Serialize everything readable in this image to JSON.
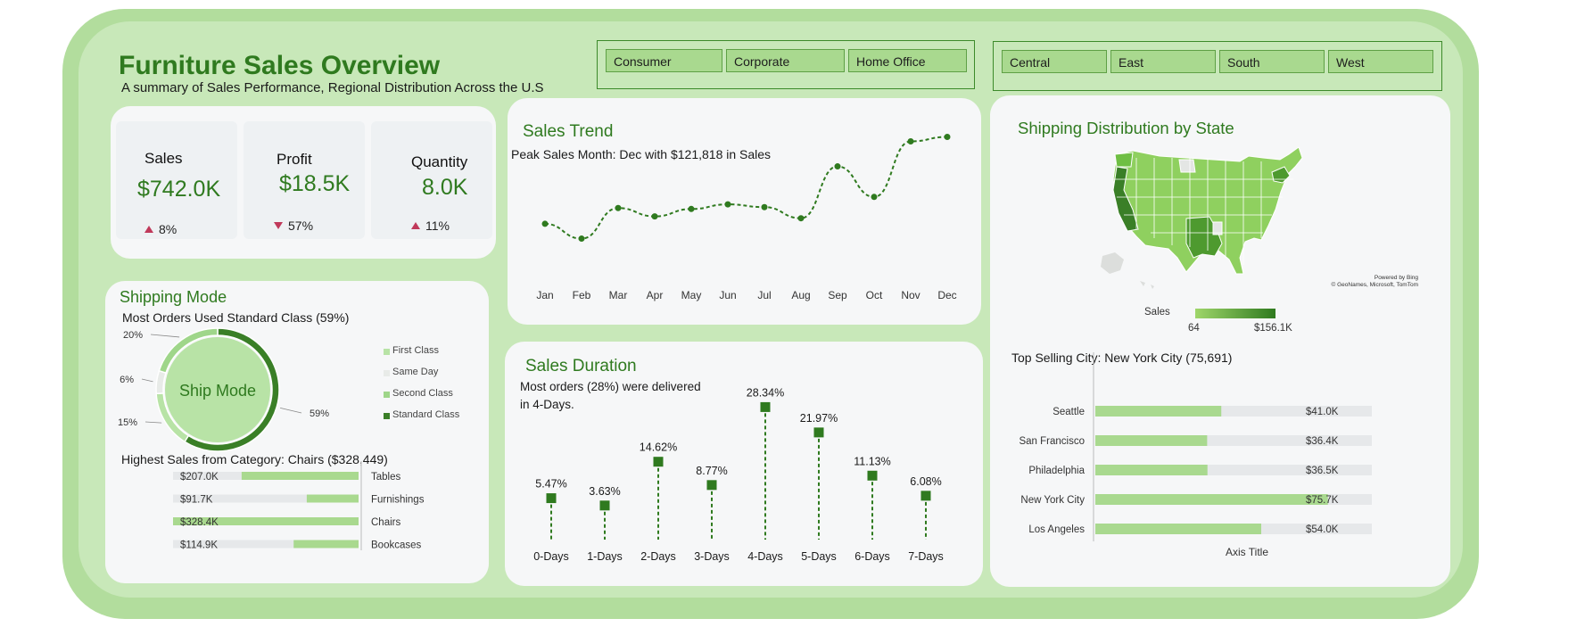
{
  "header": {
    "title": "Furniture Sales Overview",
    "subtitle": "A summary  of Sales Performance, Regional Distribution  Across the U.S"
  },
  "segment_slicer": [
    "Consumer",
    "Corporate",
    "Home Office"
  ],
  "region_slicer": [
    "Central",
    "East",
    "South",
    "West"
  ],
  "kpis": [
    {
      "label": "Sales",
      "value": "$742.0K",
      "change": "8%",
      "direction": "up"
    },
    {
      "label": "Profit",
      "value": "$18.5K",
      "change": "57%",
      "direction": "down"
    },
    {
      "label": "Quantity",
      "value": "8.0K",
      "change": "11%",
      "direction": "up"
    }
  ],
  "sales_trend": {
    "title": "Sales  Trend",
    "note": "Peak Sales Month: Dec with $121,818 in Sales"
  },
  "shipping_mode": {
    "title": "Shipping Mode",
    "note": "Most Orders Used Standard Class (59%)",
    "center_label": "Ship Mode",
    "slices": [
      {
        "name": "First Class",
        "pct": "15%",
        "value": 15,
        "color": "#b8e3a6"
      },
      {
        "name": "Same Day",
        "pct": "6%",
        "value": 6,
        "color": "#e8ebe8"
      },
      {
        "name": "Second Class",
        "pct": "20%",
        "value": 20,
        "color": "#9fd68a"
      },
      {
        "name": "Standard Class",
        "pct": "59%",
        "value": 59,
        "color": "#3a7f27"
      }
    ]
  },
  "category": {
    "note": "Highest Sales from Category: Chairs ($328,449)",
    "rows": [
      {
        "name": "Tables",
        "label": "$207.0K",
        "value": 207.0
      },
      {
        "name": "Furnishings",
        "label": "$91.7K",
        "value": 91.7
      },
      {
        "name": "Chairs",
        "label": "$328.4K",
        "value": 328.4
      },
      {
        "name": "Bookcases",
        "label": "$114.9K",
        "value": 114.9
      }
    ],
    "max": 328.4
  },
  "sales_duration": {
    "title": "Sales  Duration",
    "note_line1": "Most orders (28%) were delivered",
    "note_line2": "in 4-Days."
  },
  "map": {
    "title": "Shipping Distribution by State",
    "credit_line1": "Powered by Bing",
    "credit_line2": "© GeoNames, Microsoft, TomTom",
    "legend_title": "Sales",
    "legend_min": "64",
    "legend_max": "$156.1K",
    "legend_colors": [
      "#9fd66a",
      "#2f7a1f"
    ]
  },
  "top_cities": {
    "note": "Top Selling City: New York City (75,691)",
    "axis_title": "Axis Title",
    "rows": [
      {
        "city": "Seattle",
        "label": "$41.0K",
        "value": 41.0
      },
      {
        "city": "San Francisco",
        "label": "$36.4K",
        "value": 36.4
      },
      {
        "city": "Philadelphia",
        "label": "$36.5K",
        "value": 36.5
      },
      {
        "city": "New York City",
        "label": "$75.7K",
        "value": 75.7
      },
      {
        "city": "Los Angeles",
        "label": "$54.0K",
        "value": 54.0
      }
    ],
    "max": 90
  },
  "colors": {
    "accent": "#2f7a1f",
    "light": "#a9d98f",
    "negative": "#c0395a"
  },
  "chart_data": [
    {
      "type": "line",
      "title": "Sales  Trend",
      "categories": [
        "Jan",
        "Feb",
        "Mar",
        "Apr",
        "May",
        "Jun",
        "Jul",
        "Aug",
        "Sep",
        "Oct",
        "Nov",
        "Dec"
      ],
      "values": [
        28000,
        12000,
        45000,
        36000,
        44000,
        49000,
        46000,
        34000,
        90000,
        57000,
        117000,
        121818
      ],
      "ylim": [
        0,
        130000
      ],
      "grid": false
    },
    {
      "type": "scatter",
      "title": "Sales  Duration",
      "categories": [
        "0-Days",
        "1-Days",
        "2-Days",
        "3-Days",
        "4-Days",
        "5-Days",
        "6-Days",
        "7-Days"
      ],
      "values": [
        5.47,
        3.63,
        14.62,
        8.77,
        28.34,
        21.97,
        11.13,
        6.08
      ],
      "labels": [
        "5.47%",
        "3.63%",
        "14.62%",
        "8.77%",
        "28.34%",
        "21.97%",
        "11.13%",
        "6.08%"
      ],
      "ylim": [
        0,
        30
      ]
    }
  ]
}
